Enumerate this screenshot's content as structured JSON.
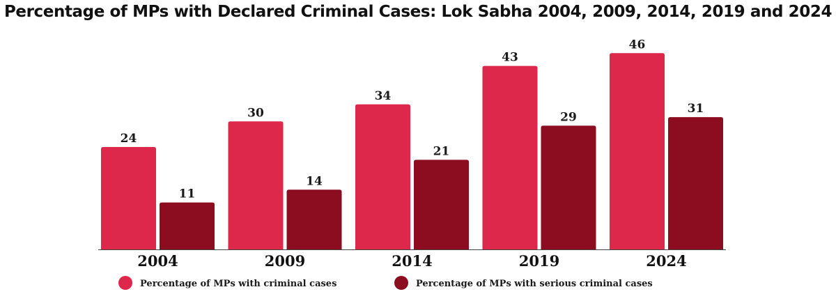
{
  "chart_data": {
    "type": "bar",
    "title": "Percentage of MPs with Declared Criminal Cases: Lok Sabha 2004, 2009, 2014, 2019 and 2024",
    "categories": [
      "2004",
      "2009",
      "2014",
      "2019",
      "2024"
    ],
    "series": [
      {
        "name": "Percentage of MPs with criminal cases",
        "color": "#dd274b",
        "values": [
          24,
          30,
          34,
          43,
          46
        ]
      },
      {
        "name": "Percentage of MPs with serious criminal cases",
        "color": "#8c0c20",
        "values": [
          11,
          14,
          21,
          29,
          31
        ]
      }
    ],
    "xlabel": "",
    "ylabel": "",
    "ylim": [
      0,
      48
    ],
    "grid": false,
    "legend": "bottom"
  }
}
